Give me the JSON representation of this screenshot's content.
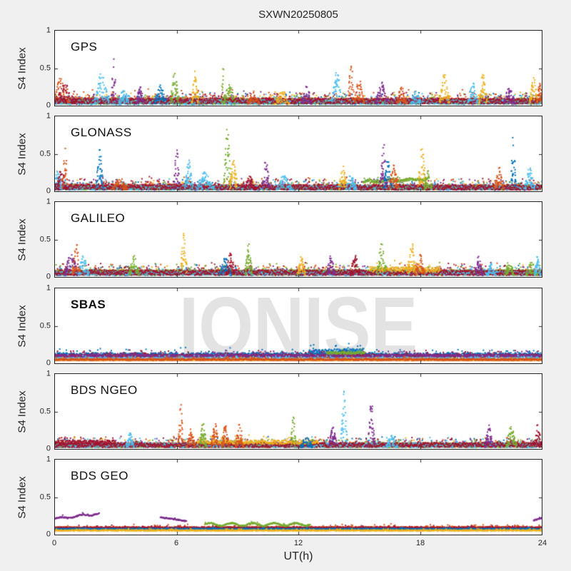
{
  "chart_data": {
    "type": "scatter",
    "title": "SXWN20250805",
    "xlabel": "UT(h)",
    "ylabel": "S4 Index",
    "watermark": "IONISE",
    "xlim": [
      0,
      24
    ],
    "ylim": [
      0,
      1
    ],
    "xticks": [
      0,
      6,
      12,
      18,
      24
    ],
    "yticks": [
      0,
      0.5,
      1
    ],
    "xtick_labels": [
      "0",
      "6",
      "12",
      "18",
      "24"
    ],
    "ytick_labels": [
      "0",
      "0.5",
      "1"
    ],
    "grid": false,
    "legend": "none",
    "axis_color": "#262626",
    "plot_background": "#ffffff",
    "figure_background": "#f0f0f0",
    "watermark_color": "#e3e3e3",
    "colors": [
      "#0072BD",
      "#D95319",
      "#EDB120",
      "#7E2F8E",
      "#77AC30",
      "#4DBEEE",
      "#A2142F"
    ],
    "seed": 11,
    "points_per_hour": 55,
    "marker_px": 2,
    "panels": [
      {
        "label": "GPS",
        "bands": [
          {
            "c": 0,
            "t0": 0,
            "t1": 24,
            "y0": 0.05,
            "y1": 0.05,
            "s": 0.035
          },
          {
            "c": 1,
            "t0": 0,
            "t1": 24,
            "y0": 0.07,
            "y1": 0.06,
            "s": 0.04
          },
          {
            "c": 2,
            "t0": 0,
            "t1": 24,
            "y0": 0.06,
            "y1": 0.06,
            "s": 0.035
          },
          {
            "c": 3,
            "t0": 0,
            "t1": 24,
            "y0": 0.06,
            "y1": 0.06,
            "s": 0.035
          },
          {
            "c": 4,
            "t0": 0,
            "t1": 24,
            "y0": 0.05,
            "y1": 0.05,
            "s": 0.03
          },
          {
            "c": 5,
            "t0": 0,
            "t1": 24,
            "y0": 0.05,
            "y1": 0.05,
            "s": 0.03
          },
          {
            "c": 6,
            "t0": 0,
            "t1": 24,
            "y0": 0.065,
            "y1": 0.06,
            "s": 0.035
          }
        ],
        "events": [
          {
            "c": 1,
            "t": 0.3,
            "p": 0.38,
            "w": 0.8,
            "n": 60
          },
          {
            "c": 6,
            "t": 0.5,
            "p": 0.28,
            "w": 1.2,
            "n": 70
          },
          {
            "c": 5,
            "t": 2.3,
            "p": 0.46,
            "w": 0.7,
            "n": 60
          },
          {
            "c": 3,
            "t": 2.9,
            "p": 0.66,
            "w": 0.25,
            "n": 25
          },
          {
            "c": 5,
            "t": 3.4,
            "p": 0.25,
            "w": 0.5
          },
          {
            "c": 3,
            "t": 4.2,
            "p": 0.28,
            "w": 0.4
          },
          {
            "c": 0,
            "t": 5.2,
            "p": 0.28,
            "w": 0.6
          },
          {
            "c": 4,
            "t": 5.9,
            "p": 0.46,
            "w": 0.4
          },
          {
            "c": 2,
            "t": 6.9,
            "p": 0.48,
            "w": 0.35
          },
          {
            "c": 4,
            "t": 8.3,
            "p": 0.65,
            "w": 0.2,
            "n": 15
          },
          {
            "c": 4,
            "t": 8.6,
            "p": 0.3,
            "w": 0.6
          },
          {
            "c": 1,
            "t": 9.8,
            "p": 0.2,
            "w": 0.6
          },
          {
            "c": 2,
            "t": 11.2,
            "p": 0.22,
            "w": 0.7
          },
          {
            "c": 3,
            "t": 12.4,
            "p": 0.28,
            "w": 0.5
          },
          {
            "c": 5,
            "t": 13.9,
            "p": 0.48,
            "w": 0.5,
            "n": 50
          },
          {
            "c": 1,
            "t": 14.6,
            "p": 0.66,
            "w": 0.3,
            "n": 30
          },
          {
            "c": 1,
            "t": 15.0,
            "p": 0.35,
            "w": 0.5
          },
          {
            "c": 3,
            "t": 16.1,
            "p": 0.34,
            "w": 0.6
          },
          {
            "c": 1,
            "t": 17.1,
            "p": 0.26,
            "w": 0.5
          },
          {
            "c": 5,
            "t": 17.8,
            "p": 0.2,
            "w": 0.5
          },
          {
            "c": 2,
            "t": 19.2,
            "p": 0.43,
            "w": 0.5
          },
          {
            "c": 5,
            "t": 20.6,
            "p": 0.33,
            "w": 0.5
          },
          {
            "c": 2,
            "t": 21.1,
            "p": 0.43,
            "w": 0.4
          },
          {
            "c": 3,
            "t": 22.4,
            "p": 0.24,
            "w": 0.6
          },
          {
            "c": 2,
            "t": 23.6,
            "p": 0.4,
            "w": 0.4
          },
          {
            "c": 1,
            "t": 23.9,
            "p": 0.3,
            "w": 0.3
          }
        ]
      },
      {
        "label": "GLONASS",
        "bands": [
          {
            "c": 0,
            "t0": 0,
            "t1": 24,
            "y0": 0.045,
            "y1": 0.045,
            "s": 0.03
          },
          {
            "c": 1,
            "t0": 0,
            "t1": 24,
            "y0": 0.06,
            "y1": 0.055,
            "s": 0.035
          },
          {
            "c": 2,
            "t0": 0,
            "t1": 24,
            "y0": 0.05,
            "y1": 0.05,
            "s": 0.03
          },
          {
            "c": 3,
            "t0": 0,
            "t1": 24,
            "y0": 0.05,
            "y1": 0.05,
            "s": 0.03
          },
          {
            "c": 4,
            "t0": 0,
            "t1": 24,
            "y0": 0.045,
            "y1": 0.045,
            "s": 0.025
          },
          {
            "c": 5,
            "t0": 0,
            "t1": 24,
            "y0": 0.05,
            "y1": 0.05,
            "s": 0.03
          },
          {
            "c": 6,
            "t0": 0,
            "t1": 24,
            "y0": 0.06,
            "y1": 0.05,
            "s": 0.035
          },
          {
            "c": 4,
            "t0": 15.2,
            "t1": 18.3,
            "y0": 0.13,
            "y1": 0.16,
            "s": 0.018,
            "wv": 0.01
          }
        ],
        "events": [
          {
            "c": 5,
            "t": 0.15,
            "p": 0.3,
            "w": 0.4
          },
          {
            "c": 6,
            "t": 0.3,
            "p": 0.32,
            "w": 0.6
          },
          {
            "c": 1,
            "t": 0.5,
            "p": 0.58,
            "w": 0.3,
            "n": 30
          },
          {
            "c": 0,
            "t": 2.2,
            "p": 0.62,
            "w": 0.35,
            "n": 40
          },
          {
            "c": 1,
            "t": 3.2,
            "p": 0.18,
            "w": 0.8
          },
          {
            "c": 3,
            "t": 6.0,
            "p": 0.58,
            "w": 0.3,
            "n": 30
          },
          {
            "c": 5,
            "t": 6.6,
            "p": 0.42,
            "w": 0.4
          },
          {
            "c": 5,
            "t": 7.4,
            "p": 0.26,
            "w": 0.9,
            "n": 70
          },
          {
            "c": 4,
            "t": 8.5,
            "p": 0.88,
            "w": 0.35,
            "n": 45
          },
          {
            "c": 2,
            "t": 8.8,
            "p": 0.46,
            "w": 0.4
          },
          {
            "c": 6,
            "t": 9.6,
            "p": 0.2,
            "w": 0.6
          },
          {
            "c": 3,
            "t": 10.4,
            "p": 0.44,
            "w": 0.4,
            "n": 40
          },
          {
            "c": 5,
            "t": 11.3,
            "p": 0.22,
            "w": 0.8
          },
          {
            "c": 2,
            "t": 14.2,
            "p": 0.34,
            "w": 0.4
          },
          {
            "c": 5,
            "t": 14.6,
            "p": 0.24,
            "w": 0.5
          },
          {
            "c": 3,
            "t": 16.2,
            "p": 0.66,
            "w": 0.35,
            "n": 40
          },
          {
            "c": 0,
            "t": 16.4,
            "p": 0.44,
            "w": 0.4
          },
          {
            "c": 1,
            "t": 16.7,
            "p": 0.36,
            "w": 0.5
          },
          {
            "c": 2,
            "t": 18.1,
            "p": 0.6,
            "w": 0.4,
            "n": 45
          },
          {
            "c": 4,
            "t": 18.4,
            "p": 0.3,
            "w": 0.4
          },
          {
            "c": 1,
            "t": 21.9,
            "p": 0.32,
            "w": 0.5
          },
          {
            "c": 0,
            "t": 22.6,
            "p": 0.78,
            "w": 0.25,
            "n": 30
          },
          {
            "c": 5,
            "t": 23.4,
            "p": 0.32,
            "w": 0.5
          }
        ]
      },
      {
        "label": "GALILEO",
        "bands": [
          {
            "c": 0,
            "t0": 0,
            "t1": 24,
            "y0": 0.05,
            "y1": 0.05,
            "s": 0.03
          },
          {
            "c": 1,
            "t0": 0,
            "t1": 24,
            "y0": 0.06,
            "y1": 0.06,
            "s": 0.035
          },
          {
            "c": 2,
            "t0": 0,
            "t1": 24,
            "y0": 0.055,
            "y1": 0.055,
            "s": 0.03
          },
          {
            "c": 3,
            "t0": 0,
            "t1": 24,
            "y0": 0.055,
            "y1": 0.055,
            "s": 0.03
          },
          {
            "c": 4,
            "t0": 0,
            "t1": 24,
            "y0": 0.06,
            "y1": 0.06,
            "s": 0.035
          },
          {
            "c": 5,
            "t0": 0,
            "t1": 24,
            "y0": 0.05,
            "y1": 0.05,
            "s": 0.025
          },
          {
            "c": 6,
            "t0": 0,
            "t1": 24,
            "y0": 0.06,
            "y1": 0.055,
            "s": 0.035
          },
          {
            "c": 2,
            "t0": 15.5,
            "t1": 19,
            "y0": 0.1,
            "y1": 0.1,
            "s": 0.035
          }
        ],
        "events": [
          {
            "c": 3,
            "t": 0.8,
            "p": 0.32,
            "w": 0.7,
            "n": 60
          },
          {
            "c": 1,
            "t": 1.05,
            "p": 0.46,
            "w": 0.4
          },
          {
            "c": 5,
            "t": 1.4,
            "p": 0.3,
            "w": 0.5
          },
          {
            "c": 4,
            "t": 3.9,
            "p": 0.3,
            "w": 0.5
          },
          {
            "c": 2,
            "t": 6.35,
            "p": 0.68,
            "w": 0.3,
            "n": 35
          },
          {
            "c": 0,
            "t": 8.4,
            "p": 0.26,
            "w": 0.6
          },
          {
            "c": 6,
            "t": 8.65,
            "p": 0.34,
            "w": 0.4
          },
          {
            "c": 4,
            "t": 9.55,
            "p": 0.48,
            "w": 0.35
          },
          {
            "c": 2,
            "t": 12.15,
            "p": 0.28,
            "w": 0.4
          },
          {
            "c": 3,
            "t": 13.6,
            "p": 0.3,
            "w": 0.4
          },
          {
            "c": 6,
            "t": 14.8,
            "p": 0.3,
            "w": 0.5
          },
          {
            "c": 4,
            "t": 16.1,
            "p": 0.48,
            "w": 0.45,
            "n": 45
          },
          {
            "c": 2,
            "t": 17.6,
            "p": 0.46,
            "w": 0.5,
            "n": 50
          },
          {
            "c": 1,
            "t": 18.0,
            "p": 0.3,
            "w": 0.5
          },
          {
            "c": 3,
            "t": 20.9,
            "p": 0.3,
            "w": 0.4
          },
          {
            "c": 5,
            "t": 21.5,
            "p": 0.18,
            "w": 0.5
          },
          {
            "c": 4,
            "t": 22.4,
            "p": 0.22,
            "w": 0.5
          },
          {
            "c": 4,
            "t": 23.5,
            "p": 0.2,
            "w": 0.6
          },
          {
            "c": 5,
            "t": 23.8,
            "p": 0.3,
            "w": 0.3
          }
        ]
      },
      {
        "label": "SBAS",
        "bold": true,
        "bands": [
          {
            "c": 0,
            "t0": 0,
            "t1": 24,
            "y0": 0.115,
            "y1": 0.115,
            "s": 0.025
          },
          {
            "c": 0,
            "t0": 12.5,
            "t1": 15.2,
            "y0": 0.15,
            "y1": 0.17,
            "s": 0.03
          },
          {
            "c": 6,
            "t0": 0,
            "t1": 24,
            "y0": 0.1,
            "y1": 0.1,
            "s": 0.02
          },
          {
            "c": 3,
            "t0": 0,
            "t1": 24,
            "y0": 0.1,
            "y1": 0.1,
            "s": 0.018
          },
          {
            "c": 5,
            "t0": 0,
            "t1": 24,
            "y0": 0.06,
            "y1": 0.06,
            "s": 0.015
          },
          {
            "c": 2,
            "t0": 0,
            "t1": 24,
            "y0": 0.045,
            "y1": 0.045,
            "s": 0.01
          },
          {
            "c": 1,
            "t0": 0,
            "t1": 24,
            "y0": 0.05,
            "y1": 0.05,
            "s": 0.012
          },
          {
            "c": 4,
            "t0": 13.4,
            "t1": 15.3,
            "y0": 0.14,
            "y1": 0.14,
            "s": 0.015
          }
        ],
        "events": []
      },
      {
        "label": "BDS NGEO",
        "bands": [
          {
            "c": 0,
            "t0": 0,
            "t1": 24,
            "y0": 0.05,
            "y1": 0.05,
            "s": 0.03
          },
          {
            "c": 1,
            "t0": 0,
            "t1": 24,
            "y0": 0.055,
            "y1": 0.055,
            "s": 0.03
          },
          {
            "c": 2,
            "t0": 0,
            "t1": 24,
            "y0": 0.05,
            "y1": 0.05,
            "s": 0.03
          },
          {
            "c": 3,
            "t0": 0,
            "t1": 24,
            "y0": 0.045,
            "y1": 0.05,
            "s": 0.025
          },
          {
            "c": 4,
            "t0": 0,
            "t1": 24,
            "y0": 0.045,
            "y1": 0.05,
            "s": 0.025
          },
          {
            "c": 5,
            "t0": 0,
            "t1": 24,
            "y0": 0.05,
            "y1": 0.05,
            "s": 0.03
          },
          {
            "c": 6,
            "t0": 0,
            "t1": 24,
            "y0": 0.05,
            "y1": 0.055,
            "s": 0.03
          },
          {
            "c": 6,
            "t0": 0,
            "t1": 3,
            "y0": 0.09,
            "y1": 0.09,
            "s": 0.025
          },
          {
            "c": 2,
            "t0": 7,
            "t1": 13,
            "y0": 0.09,
            "y1": 0.09,
            "s": 0.025
          }
        ],
        "events": [
          {
            "c": 5,
            "t": 3.7,
            "p": 0.22,
            "w": 0.4
          },
          {
            "c": 1,
            "t": 6.2,
            "p": 0.62,
            "w": 0.25,
            "n": 30
          },
          {
            "c": 1,
            "t": 6.7,
            "p": 0.27,
            "w": 0.4
          },
          {
            "c": 4,
            "t": 7.3,
            "p": 0.38,
            "w": 0.35
          },
          {
            "c": 1,
            "t": 7.9,
            "p": 0.35,
            "w": 0.4
          },
          {
            "c": 1,
            "t": 8.4,
            "p": 0.33,
            "w": 0.4
          },
          {
            "c": 1,
            "t": 9.1,
            "p": 0.36,
            "w": 0.4
          },
          {
            "c": 4,
            "t": 11.75,
            "p": 0.48,
            "w": 0.25,
            "n": 25
          },
          {
            "c": 0,
            "t": 12.4,
            "p": 0.18,
            "w": 0.6
          },
          {
            "c": 3,
            "t": 13.7,
            "p": 0.3,
            "w": 0.4
          },
          {
            "c": 5,
            "t": 14.25,
            "p": 0.78,
            "w": 0.3,
            "n": 40
          },
          {
            "c": 3,
            "t": 15.6,
            "p": 0.66,
            "w": 0.35,
            "n": 45
          },
          {
            "c": 5,
            "t": 16.6,
            "p": 0.18,
            "w": 0.6
          },
          {
            "c": 3,
            "t": 21.4,
            "p": 0.32,
            "w": 0.4
          },
          {
            "c": 4,
            "t": 22.5,
            "p": 0.32,
            "w": 0.5
          },
          {
            "c": 6,
            "t": 23.8,
            "p": 0.34,
            "w": 0.4,
            "n": 40
          }
        ]
      },
      {
        "label": "BDS GEO",
        "bands": [
          {
            "c": 1,
            "t0": 0,
            "t1": 24,
            "y0": 0.09,
            "y1": 0.095,
            "s": 0.013
          },
          {
            "c": 6,
            "t0": 0,
            "t1": 24,
            "y0": 0.09,
            "y1": 0.09,
            "s": 0.01
          },
          {
            "c": 0,
            "t0": 0,
            "t1": 24,
            "y0": 0.075,
            "y1": 0.075,
            "s": 0.006
          },
          {
            "c": 2,
            "t0": 0,
            "t1": 24,
            "y0": 0.055,
            "y1": 0.055,
            "s": 0.007
          },
          {
            "c": 3,
            "t0": 0,
            "t1": 2.2,
            "y0": 0.21,
            "y1": 0.28,
            "s": 0.008,
            "wv": 0.012
          },
          {
            "c": 3,
            "t0": 5.2,
            "t1": 6.5,
            "y0": 0.23,
            "y1": 0.18,
            "s": 0.006
          },
          {
            "c": 3,
            "t0": 23.6,
            "t1": 24,
            "y0": 0.19,
            "y1": 0.22,
            "s": 0.006
          },
          {
            "c": 4,
            "t0": 7.4,
            "t1": 12.6,
            "y0": 0.135,
            "y1": 0.135,
            "s": 0.008,
            "wv": 0.018
          }
        ],
        "events": []
      }
    ]
  }
}
